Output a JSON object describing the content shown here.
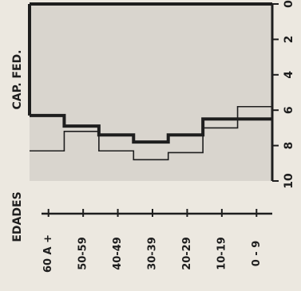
{
  "chart_data": {
    "type": "line",
    "orientation": "rotated",
    "title": "",
    "xlabel": "EDADES",
    "ylabel": "CAP. FED.",
    "categories": [
      "60 A +",
      "50-59",
      "40-49",
      "30-39",
      "20-29",
      "10-19",
      "0 - 9"
    ],
    "y_ticks": [
      "0",
      "2",
      "4",
      "6",
      "8",
      "10"
    ],
    "ylim": [
      0,
      10
    ],
    "grid": false,
    "series": [
      {
        "values": [
          6.3,
          6.9,
          7.4,
          7.8,
          7.4,
          6.5,
          6.5
        ],
        "style": "thick"
      },
      {
        "values": [
          8.3,
          7.2,
          8.3,
          8.8,
          8.4,
          7.0,
          5.8
        ],
        "style": "thin"
      }
    ]
  },
  "colors": {
    "background": "#ece8e0",
    "plot_background": "#d9d5ce",
    "ink": "#1e1e1e"
  }
}
